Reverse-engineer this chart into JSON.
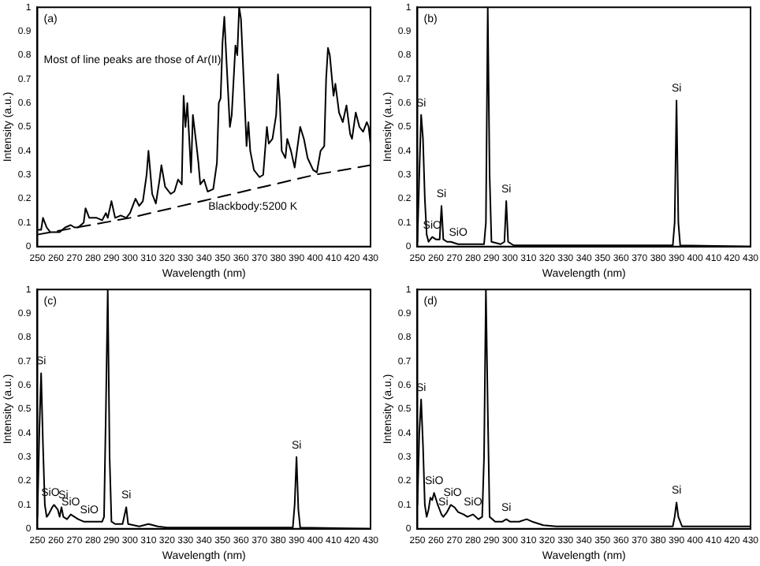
{
  "chart_data": [
    {
      "type": "line",
      "xlabel": "Wavelength (nm)",
      "ylabel": "Intensity (a.u.)",
      "xlim": [
        250,
        430
      ],
      "ylim": [
        0,
        1
      ],
      "xticks": [
        250,
        260,
        270,
        280,
        290,
        300,
        310,
        320,
        330,
        340,
        350,
        360,
        370,
        380,
        390,
        400,
        410,
        420,
        430
      ],
      "yticks": [
        0,
        0.1,
        0.2,
        0.3,
        0.4,
        0.5,
        0.6,
        0.7,
        0.8,
        0.9,
        1
      ],
      "grid": false,
      "legend": false,
      "marker": "none",
      "annotations": [
        "(a)",
        "Most of line peaks are those of Ar(II)",
        "Blackbody:5200 K"
      ],
      "series": [
        {
          "color": "#000000",
          "x": [
            250,
            252,
            253,
            255,
            257,
            262,
            265,
            268,
            270,
            272,
            275,
            276,
            278,
            282,
            285,
            287,
            288,
            290,
            292,
            295,
            298,
            300,
            302,
            303,
            305,
            307,
            309,
            310,
            312,
            314,
            316,
            317,
            319,
            322,
            324,
            326,
            328,
            329,
            330,
            331,
            333,
            334,
            336,
            337,
            338,
            340,
            342,
            345,
            347,
            348,
            349,
            350,
            351,
            352,
            354,
            355,
            357,
            358,
            359,
            360,
            362,
            363,
            364,
            365,
            367,
            370,
            372,
            374,
            375,
            377,
            379,
            380,
            381,
            382,
            384,
            385,
            387,
            389,
            392,
            394,
            396,
            399,
            401,
            403,
            405,
            406,
            407,
            408,
            410,
            411,
            413,
            415,
            417,
            419,
            420,
            422,
            424,
            426,
            428,
            429,
            430
          ],
          "values": [
            0.07,
            0.07,
            0.12,
            0.08,
            0.06,
            0.06,
            0.08,
            0.09,
            0.08,
            0.08,
            0.1,
            0.16,
            0.12,
            0.12,
            0.11,
            0.14,
            0.12,
            0.19,
            0.12,
            0.13,
            0.12,
            0.14,
            0.18,
            0.2,
            0.17,
            0.19,
            0.3,
            0.4,
            0.22,
            0.18,
            0.28,
            0.34,
            0.25,
            0.22,
            0.23,
            0.28,
            0.26,
            0.63,
            0.5,
            0.6,
            0.31,
            0.55,
            0.42,
            0.35,
            0.26,
            0.28,
            0.23,
            0.24,
            0.35,
            0.6,
            0.62,
            0.85,
            0.96,
            0.8,
            0.5,
            0.55,
            0.84,
            0.8,
            1.0,
            0.95,
            0.6,
            0.42,
            0.52,
            0.4,
            0.32,
            0.29,
            0.3,
            0.5,
            0.43,
            0.45,
            0.55,
            0.72,
            0.6,
            0.4,
            0.37,
            0.45,
            0.4,
            0.33,
            0.5,
            0.45,
            0.37,
            0.32,
            0.31,
            0.4,
            0.42,
            0.7,
            0.83,
            0.8,
            0.63,
            0.68,
            0.56,
            0.52,
            0.59,
            0.47,
            0.45,
            0.56,
            0.5,
            0.48,
            0.52,
            0.5,
            0.43
          ]
        },
        {
          "color": "#000000",
          "line_style": "dashed",
          "x": [
            250,
            300,
            350,
            400,
            430
          ],
          "values": [
            0.05,
            0.12,
            0.21,
            0.3,
            0.34
          ]
        }
      ]
    },
    {
      "type": "line",
      "xlabel": "Wavelength (nm)",
      "ylabel": "Intensity (a.u.)",
      "xlim": [
        250,
        430
      ],
      "ylim": [
        0,
        1
      ],
      "xticks": [
        250,
        260,
        270,
        280,
        290,
        300,
        310,
        320,
        330,
        340,
        350,
        360,
        370,
        380,
        390,
        400,
        410,
        420,
        430
      ],
      "yticks": [
        0,
        0.1,
        0.2,
        0.3,
        0.4,
        0.5,
        0.6,
        0.7,
        0.8,
        0.9,
        1
      ],
      "grid": false,
      "legend": false,
      "marker": "none",
      "annotations": [
        "(b)",
        {
          "text": "Si",
          "x": 252,
          "y": 0.55
        },
        {
          "text": "SiO",
          "x": 258,
          "y": 0.04
        },
        {
          "text": "Si",
          "x": 263,
          "y": 0.17
        },
        {
          "text": "SiO",
          "x": 272,
          "y": 0.01
        },
        {
          "text": "Si",
          "x": 298,
          "y": 0.19
        },
        {
          "text": "Si",
          "x": 390,
          "y": 0.61
        }
      ],
      "series": [
        {
          "color": "#000000",
          "x": [
            250,
            251,
            252,
            253,
            254,
            255,
            256,
            258,
            260,
            262,
            263,
            264,
            266,
            268,
            272,
            286,
            287,
            288,
            289,
            290,
            295,
            297,
            298,
            299,
            302,
            388,
            389,
            390,
            391,
            392,
            430
          ],
          "values": [
            0.02,
            0.3,
            0.55,
            0.45,
            0.2,
            0.05,
            0.02,
            0.04,
            0.03,
            0.03,
            0.17,
            0.03,
            0.02,
            0.02,
            0.01,
            0.01,
            0.1,
            1.0,
            0.3,
            0.02,
            0.01,
            0.02,
            0.19,
            0.02,
            0.005,
            0.005,
            0.1,
            0.61,
            0.1,
            0.005,
            0
          ]
        }
      ]
    },
    {
      "type": "line",
      "xlabel": "Wavelength (nm)",
      "ylabel": "Intensity (a.u.)",
      "xlim": [
        250,
        430
      ],
      "ylim": [
        0,
        1
      ],
      "xticks": [
        250,
        260,
        270,
        280,
        290,
        300,
        310,
        320,
        330,
        340,
        350,
        360,
        370,
        380,
        390,
        400,
        410,
        420,
        430
      ],
      "yticks": [
        0,
        0.1,
        0.2,
        0.3,
        0.4,
        0.5,
        0.6,
        0.7,
        0.8,
        0.9,
        1
      ],
      "grid": false,
      "legend": false,
      "marker": "none",
      "annotations": [
        "(c)",
        {
          "text": "Si",
          "x": 252,
          "y": 0.65
        },
        {
          "text": "SiO",
          "x": 257,
          "y": 0.1
        },
        {
          "text": "Si",
          "x": 264,
          "y": 0.09
        },
        {
          "text": "SiO",
          "x": 268,
          "y": 0.06
        },
        {
          "text": "SiO",
          "x": 278,
          "y": 0.03
        },
        {
          "text": "Si",
          "x": 298,
          "y": 0.09
        },
        {
          "text": "Si",
          "x": 390,
          "y": 0.3
        }
      ],
      "series": [
        {
          "color": "#000000",
          "x": [
            250,
            251,
            252,
            253,
            254,
            255,
            256,
            258,
            259,
            261,
            262,
            263,
            264,
            266,
            268,
            270,
            272,
            275,
            280,
            285,
            286,
            287,
            288,
            289,
            290,
            292,
            296,
            298,
            299,
            305,
            310,
            315,
            320,
            388,
            389,
            390,
            391,
            392,
            430
          ],
          "values": [
            0.05,
            0.4,
            0.65,
            0.35,
            0.1,
            0.05,
            0.06,
            0.09,
            0.1,
            0.08,
            0.05,
            0.09,
            0.05,
            0.04,
            0.06,
            0.05,
            0.04,
            0.03,
            0.03,
            0.03,
            0.05,
            0.5,
            1.0,
            0.3,
            0.03,
            0.02,
            0.02,
            0.09,
            0.02,
            0.01,
            0.02,
            0.01,
            0.005,
            0.005,
            0.1,
            0.3,
            0.08,
            0.005,
            0
          ]
        }
      ]
    },
    {
      "type": "line",
      "xlabel": "Wavelength (nm)",
      "ylabel": "Intensity (a.u.)",
      "xlim": [
        250,
        430
      ],
      "ylim": [
        0,
        1
      ],
      "xticks": [
        250,
        260,
        270,
        280,
        290,
        300,
        310,
        320,
        330,
        340,
        350,
        360,
        370,
        380,
        390,
        400,
        410,
        420,
        430
      ],
      "yticks": [
        0,
        0.1,
        0.2,
        0.3,
        0.4,
        0.5,
        0.6,
        0.7,
        0.8,
        0.9,
        1
      ],
      "grid": false,
      "legend": false,
      "marker": "none",
      "annotations": [
        "(d)",
        {
          "text": "Si",
          "x": 252,
          "y": 0.54
        },
        {
          "text": "SiO",
          "x": 259,
          "y": 0.15
        },
        {
          "text": "Si",
          "x": 264,
          "y": 0.06
        },
        {
          "text": "SiO",
          "x": 269,
          "y": 0.1
        },
        {
          "text": "SiO",
          "x": 280,
          "y": 0.06
        },
        {
          "text": "Si",
          "x": 298,
          "y": 0.04
        },
        {
          "text": "Si",
          "x": 390,
          "y": 0.11
        }
      ],
      "series": [
        {
          "color": "#000000",
          "x": [
            250,
            251,
            252,
            253,
            254,
            255,
            256,
            257,
            258,
            259,
            261,
            262,
            263,
            264,
            266,
            268,
            270,
            272,
            275,
            277,
            280,
            283,
            285,
            286,
            287,
            288,
            289,
            292,
            296,
            298,
            300,
            305,
            309,
            312,
            318,
            325,
            388,
            389,
            390,
            391,
            393,
            430
          ],
          "values": [
            0.1,
            0.4,
            0.54,
            0.35,
            0.1,
            0.05,
            0.08,
            0.13,
            0.12,
            0.15,
            0.1,
            0.08,
            0.06,
            0.05,
            0.07,
            0.1,
            0.09,
            0.07,
            0.06,
            0.05,
            0.06,
            0.04,
            0.05,
            0.3,
            1.0,
            0.5,
            0.05,
            0.03,
            0.03,
            0.04,
            0.03,
            0.03,
            0.04,
            0.03,
            0.015,
            0.01,
            0.01,
            0.05,
            0.11,
            0.05,
            0.01,
            0.01
          ]
        }
      ]
    }
  ]
}
